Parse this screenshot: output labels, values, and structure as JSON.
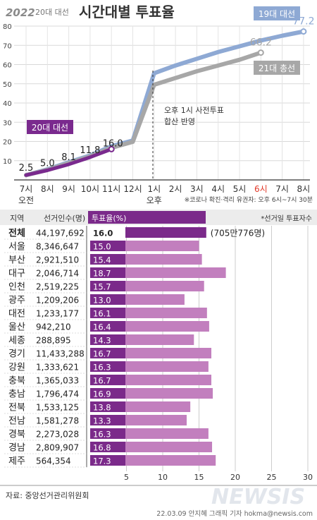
{
  "header": {
    "logo_text": "2022",
    "badge": "20대 대선",
    "title": "시간대별 투표율"
  },
  "colors": {
    "c20": "#7a2a8e",
    "c19": "#8ea9d4",
    "c21": "#a7a7a7",
    "bar_dark": "#7b2a8a",
    "bar": "#c27fbe",
    "accent_red": "#e23a2a"
  },
  "chart_data": [
    {
      "type": "line",
      "title": "시간대별 투표율",
      "x": [
        "7시",
        "8시",
        "9시",
        "10시",
        "11시",
        "12시",
        "1시",
        "2시",
        "3시",
        "4시",
        "5시",
        "6시",
        "7시",
        "8시"
      ],
      "x_sublabels": {
        "7시": "오전",
        "1시": "오후"
      },
      "ylim": [
        0,
        80
      ],
      "yticks": [
        10,
        20,
        30,
        40,
        50,
        60,
        70,
        80
      ],
      "grid": true,
      "series": [
        {
          "name": "20대 대선",
          "values": [
            2.5,
            5.0,
            8.1,
            11.8,
            16.0,
            null,
            null,
            null,
            null,
            null,
            null,
            null,
            null,
            null
          ]
        },
        {
          "name": "19대 대선",
          "values": [
            2.5,
            5.5,
            9.2,
            12.7,
            17.5,
            20.5,
            55.5,
            59.5,
            63.0,
            66.5,
            69.5,
            72.5,
            75.0,
            77.2
          ]
        },
        {
          "name": "21대 총선",
          "values": [
            2.5,
            5.2,
            8.7,
            12.2,
            16.7,
            19.8,
            49.5,
            53.0,
            56.5,
            59.5,
            62.5,
            66.2,
            null,
            null
          ]
        }
      ],
      "labeled_values": [
        {
          "series": "20대 대선",
          "x": "7시",
          "label": "2.5"
        },
        {
          "series": "20대 대선",
          "x": "8시",
          "label": "5.0"
        },
        {
          "series": "20대 대선",
          "x": "9시",
          "label": "8.1"
        },
        {
          "series": "20대 대선",
          "x": "10시",
          "label": "11.8"
        },
        {
          "series": "20대 대선",
          "x": "11시",
          "label": "16.0"
        },
        {
          "series": "19대 대선",
          "x": "8시",
          "label": "77.2"
        },
        {
          "series": "21대 총선",
          "x": "6시",
          "label": "66.2"
        }
      ],
      "annotation": [
        "오후 1시 사전투표",
        "합산 반영"
      ],
      "footnote": "※코로나 확진·격리 유권자: 오후 6시~7시 30분",
      "highlight_x": "6시"
    },
    {
      "type": "bar",
      "orientation": "horizontal",
      "headers": {
        "region": "지역",
        "voters": "선거인수(명)",
        "rate": "투표율(%)",
        "note": "*선거일 투표자수"
      },
      "categories": [
        "전체",
        "서울",
        "부산",
        "대구",
        "인천",
        "광주",
        "대전",
        "울산",
        "세종",
        "경기",
        "강원",
        "충북",
        "충남",
        "전북",
        "전남",
        "경북",
        "경남",
        "제주"
      ],
      "voters": [
        "44,197,692",
        "8,346,647",
        "2,921,510",
        "2,046,714",
        "2,519,225",
        "1,209,206",
        "1,233,177",
        "942,210",
        "288,895",
        "11,433,288",
        "1,333,621",
        "1,365,033",
        "1,796,474",
        "1,533,125",
        "1,581,278",
        "2,273,028",
        "2,809,907",
        "564,354"
      ],
      "values": [
        16.0,
        15.0,
        15.4,
        18.7,
        15.7,
        13.0,
        16.1,
        16.4,
        14.3,
        16.7,
        16.3,
        16.7,
        16.9,
        13.8,
        13.3,
        16.3,
        16.8,
        17.3
      ],
      "total_count_label": "(705만776명)",
      "xlim": [
        0,
        30
      ],
      "xticks": [
        5,
        10,
        15,
        20,
        25,
        30
      ],
      "grid": true
    }
  ],
  "footer": {
    "source": "자료: 중앙선거관리위원회",
    "credit": "22.03.09 안지혜 그래픽 기자 hokma@newsis.com",
    "watermark": "NEWSIS"
  }
}
